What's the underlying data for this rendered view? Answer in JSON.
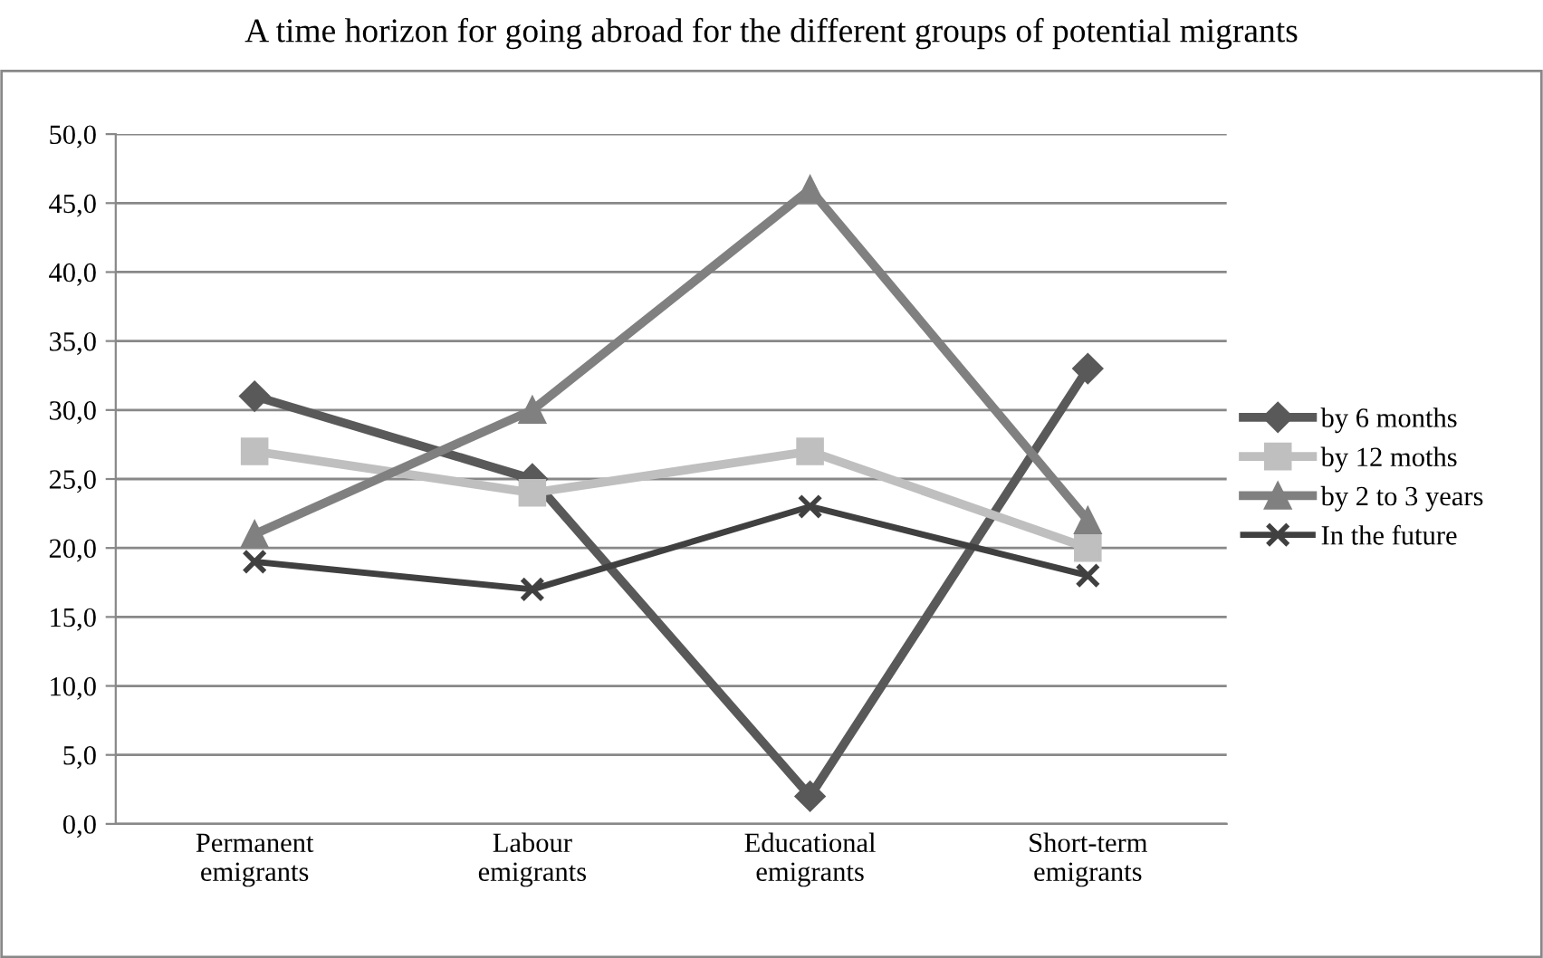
{
  "chart_data": {
    "type": "line",
    "title": "A time horizon for going abroad for the different groups of potential migrants",
    "categories": [
      "Permanent\nemigrants",
      "Labour\nemigrants",
      "Educational\nemigrants",
      "Short-term\nemigrants"
    ],
    "series": [
      {
        "name": "by 6 months",
        "color": "#595959",
        "marker": "diamond",
        "values": [
          31,
          25,
          2,
          33
        ]
      },
      {
        "name": "by 12 moths",
        "color": "#bfbfbf",
        "marker": "square",
        "values": [
          27,
          24,
          27,
          20
        ]
      },
      {
        "name": "by 2 to 3 years",
        "color": "#808080",
        "marker": "triangle",
        "values": [
          21,
          30,
          46,
          22
        ]
      },
      {
        "name": "In the future",
        "color": "#404040",
        "marker": "cross",
        "values": [
          19,
          17,
          23,
          18
        ]
      }
    ],
    "ylim": [
      0,
      50
    ],
    "yticks": [
      {
        "value": 0,
        "label": "0,0"
      },
      {
        "value": 5,
        "label": "5,0"
      },
      {
        "value": 10,
        "label": "10,0"
      },
      {
        "value": 15,
        "label": "15,0"
      },
      {
        "value": 20,
        "label": "20,0"
      },
      {
        "value": 25,
        "label": "25,0"
      },
      {
        "value": 30,
        "label": "30,0"
      },
      {
        "value": 35,
        "label": "35,0"
      },
      {
        "value": 40,
        "label": "40,0"
      },
      {
        "value": 45,
        "label": "45,0"
      },
      {
        "value": 50,
        "label": "50,0"
      }
    ],
    "grid": "y",
    "legend": "right",
    "line_style": "solid"
  }
}
